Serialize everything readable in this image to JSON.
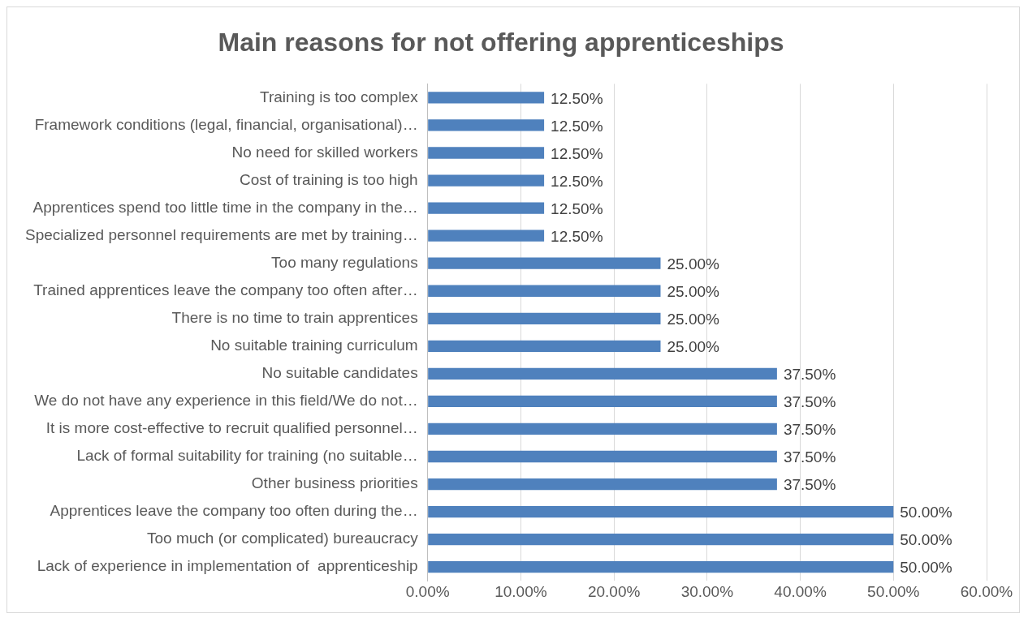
{
  "chart_data": {
    "type": "bar",
    "orientation": "horizontal",
    "title": "Main reasons for not offering apprenticeships",
    "categories": [
      "Training is too complex",
      "Framework conditions (legal, financial, organisational)…",
      "No need for skilled workers",
      "Cost of training is too high",
      "Apprentices spend too little time in the company in the…",
      "Specialized personnel requirements are met by training…",
      "Too many regulations",
      "Trained apprentices leave the company too often after…",
      "There is no time to train apprentices",
      "No suitable training curriculum",
      "No suitable candidates",
      "We do not have any experience in this field/We do not…",
      "It is more cost-effective to recruit qualified personnel…",
      "Lack of formal suitability for training (no suitable…",
      "Other business priorities",
      "Apprentices leave the company too often during the…",
      "Too much (or complicated) bureaucracy",
      "Lack of experience in implementation of  apprenticeship"
    ],
    "values": [
      12.5,
      12.5,
      12.5,
      12.5,
      12.5,
      12.5,
      25,
      25,
      25,
      25,
      37.5,
      37.5,
      37.5,
      37.5,
      37.5,
      50,
      50,
      50
    ],
    "value_labels": [
      "12.50%",
      "12.50%",
      "12.50%",
      "12.50%",
      "12.50%",
      "12.50%",
      "25.00%",
      "25.00%",
      "25.00%",
      "25.00%",
      "37.50%",
      "37.50%",
      "37.50%",
      "37.50%",
      "37.50%",
      "50.00%",
      "50.00%",
      "50.00%"
    ],
    "color": "#4f81bd",
    "xlim": [
      0,
      60
    ],
    "xticks": [
      {
        "value": 0,
        "label": "0.00%"
      },
      {
        "value": 10,
        "label": "10.00%"
      },
      {
        "value": 20,
        "label": "20.00%"
      },
      {
        "value": 30,
        "label": "30.00%"
      },
      {
        "value": 40,
        "label": "40.00%"
      },
      {
        "value": 50,
        "label": "50.00%"
      },
      {
        "value": 60,
        "label": "60.00%"
      }
    ],
    "grid": "x",
    "legend": false
  }
}
